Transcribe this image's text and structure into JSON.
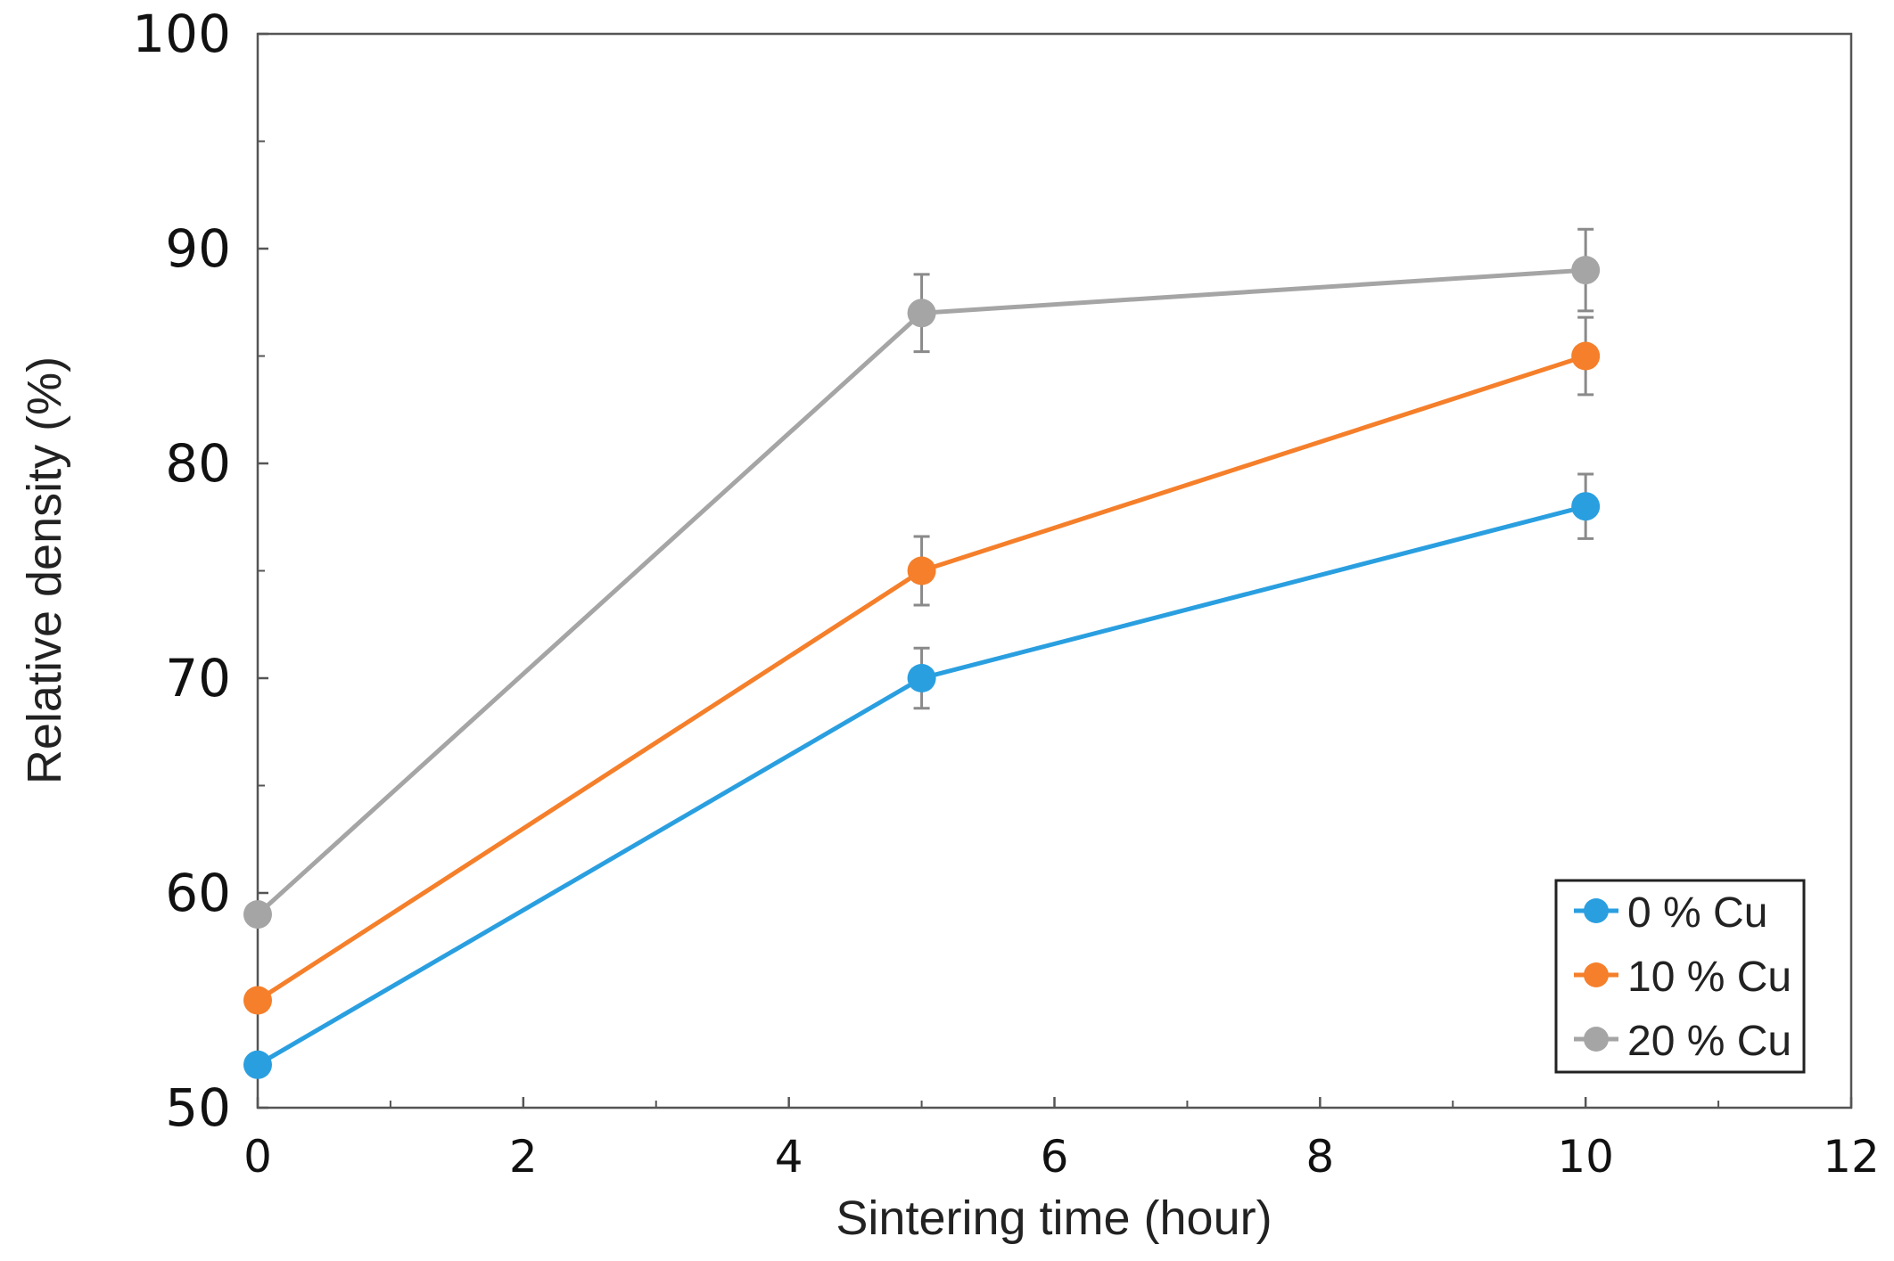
{
  "chart_data": {
    "type": "line",
    "title": "",
    "xlabel": "Sintering time (hour)",
    "ylabel": "Relative density (%)",
    "xlim": [
      0,
      12
    ],
    "ylim": [
      50,
      100
    ],
    "x_ticks": [
      0,
      2,
      4,
      6,
      8,
      10,
      12
    ],
    "x_tick_labels": [
      "0",
      "2",
      "4",
      "6",
      "8",
      "10",
      "12"
    ],
    "y_ticks": [
      50,
      60,
      70,
      80,
      90,
      100
    ],
    "y_tick_labels": [
      "50",
      "60",
      "70",
      "80",
      "90",
      "100"
    ],
    "grid": false,
    "legend_position": "bottom-right",
    "series": [
      {
        "name": "0 % Cu",
        "color": "#2a9fe0",
        "x": [
          0,
          5,
          10
        ],
        "values": [
          52,
          70,
          78
        ],
        "errors": [
          0,
          1.4,
          1.5
        ]
      },
      {
        "name": "10 % Cu",
        "color": "#f57f2a",
        "x": [
          0,
          5,
          10
        ],
        "values": [
          55,
          75,
          85
        ],
        "errors": [
          0,
          1.6,
          1.8
        ]
      },
      {
        "name": "20 % Cu",
        "color": "#a5a5a5",
        "x": [
          0,
          5,
          10
        ],
        "values": [
          59,
          87,
          89
        ],
        "errors": [
          0,
          1.8,
          1.9
        ]
      }
    ]
  }
}
